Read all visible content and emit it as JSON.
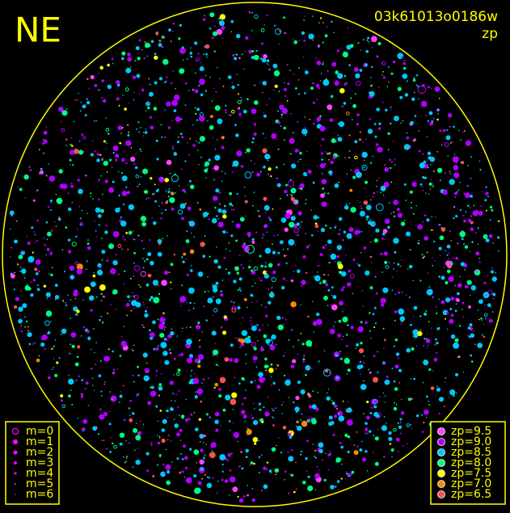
{
  "label": "NE",
  "image_id": "03k61013o0186w",
  "subtitle": "zp",
  "magnitude_legend": [
    "m=0",
    "m=1",
    "m=2",
    "m=3",
    "m=4",
    "m=5",
    "m=6"
  ],
  "magnitude_color": "#ff00ff",
  "zp_legend": [
    {
      "label": "zp=9.5",
      "color": "#ff44ff"
    },
    {
      "label": "zp=9.0",
      "color": "#b000ff"
    },
    {
      "label": "zp=8.5",
      "color": "#00c8ff"
    },
    {
      "label": "zp=8.0",
      "color": "#00ff80"
    },
    {
      "label": "zp=7.5",
      "color": "#ffff00"
    },
    {
      "label": "zp=7.0",
      "color": "#ff8800"
    },
    {
      "label": "zp=6.5",
      "color": "#ff5050"
    }
  ],
  "frame_color": "#ffff00"
}
